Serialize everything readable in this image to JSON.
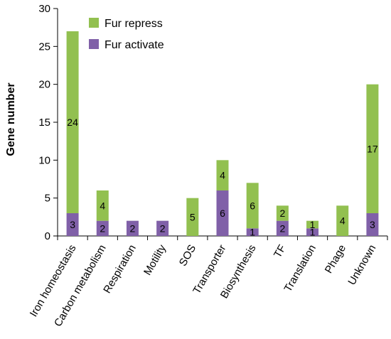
{
  "chart_data": {
    "type": "bar",
    "stacked": true,
    "categories": [
      "Iron homeostasis",
      "Carbon metabolism",
      "Respiration",
      "Motility",
      "SOS",
      "Transporter",
      "Biosynthesis",
      "TF",
      "Translation",
      "Phage",
      "Unknown"
    ],
    "series": [
      {
        "name": "Fur activate",
        "color": "#8060a8",
        "values": [
          3,
          2,
          2,
          2,
          0,
          6,
          1,
          2,
          1,
          0,
          3
        ]
      },
      {
        "name": "Fur repress",
        "color": "#92c050",
        "values": [
          24,
          4,
          0,
          0,
          5,
          4,
          6,
          2,
          1,
          4,
          17
        ]
      }
    ],
    "legend_order": [
      "Fur repress",
      "Fur activate"
    ],
    "legend_position": "top-left",
    "title": "",
    "xlabel": "",
    "ylabel": "Gene number",
    "ylim": [
      0,
      30
    ],
    "yticks": [
      0,
      5,
      10,
      15,
      20,
      25,
      30
    ],
    "grid": false
  }
}
